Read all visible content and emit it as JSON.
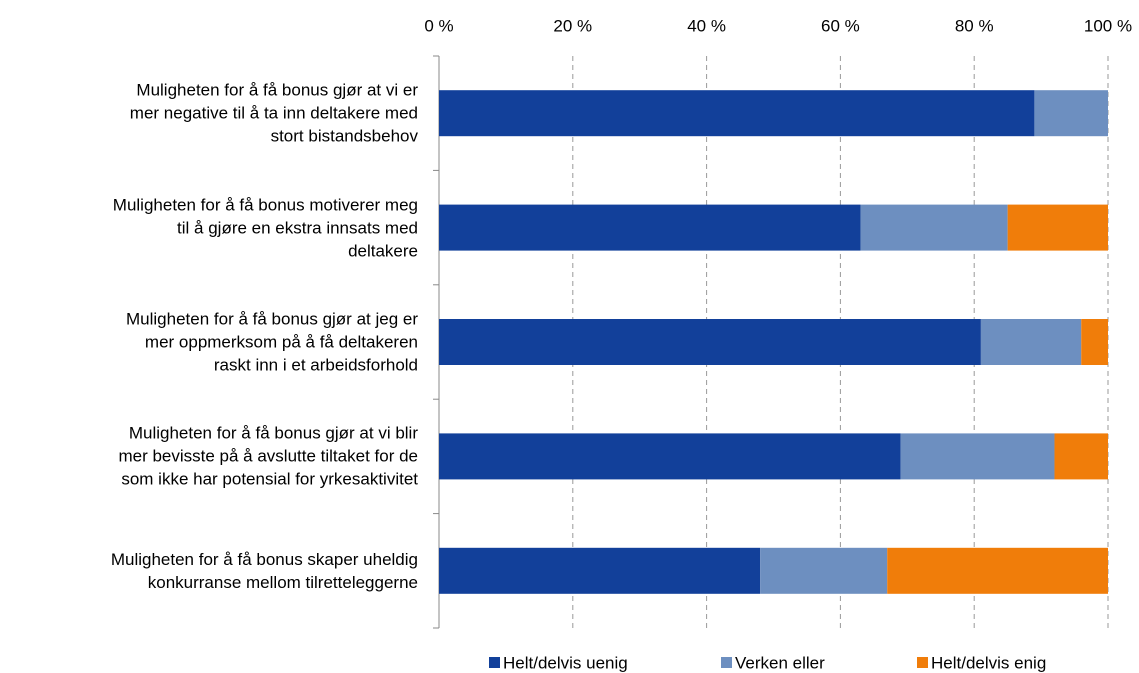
{
  "chart_data": {
    "type": "stacked_bar_horizontal",
    "categories": [
      "Muligheten for å få bonus gjør at vi er\nmer negative til å ta inn deltakere med\nstort bistandsbehov",
      "Muligheten for å få bonus motiverer meg\ntil å gjøre en ekstra innsats med\ndeltakere",
      "Muligheten for å få bonus gjør at jeg er\nmer oppmerksom på å få deltakeren\nraskt inn i et arbeidsforhold",
      "Muligheten for å få bonus gjør at vi blir\nmer bevisste på å avslutte tiltaket for de\nsom ikke har potensial for yrkesaktivitet",
      "Muligheten for å få bonus skaper uheldig\nkonkurranse mellom tilretteleggerne"
    ],
    "series": [
      {
        "name": "Helt/delvis uenig",
        "color": "#12409a",
        "values": [
          89,
          63,
          81,
          69,
          48
        ]
      },
      {
        "name": "Verken eller",
        "color": "#6d8fc0",
        "values": [
          11,
          22,
          15,
          23,
          19
        ]
      },
      {
        "name": "Helt/delvis enig",
        "color": "#f07d0a",
        "values": [
          0,
          15,
          4,
          8,
          33
        ]
      }
    ],
    "xlim": [
      0,
      100
    ],
    "xticks": [
      {
        "value": 0,
        "label": "0 %"
      },
      {
        "value": 20,
        "label": "20 %"
      },
      {
        "value": 40,
        "label": "40 %"
      },
      {
        "value": 60,
        "label": "60 %"
      },
      {
        "value": 80,
        "label": "80 %"
      },
      {
        "value": 100,
        "label": "100 %"
      }
    ],
    "grid": true,
    "legend": "bottom"
  }
}
